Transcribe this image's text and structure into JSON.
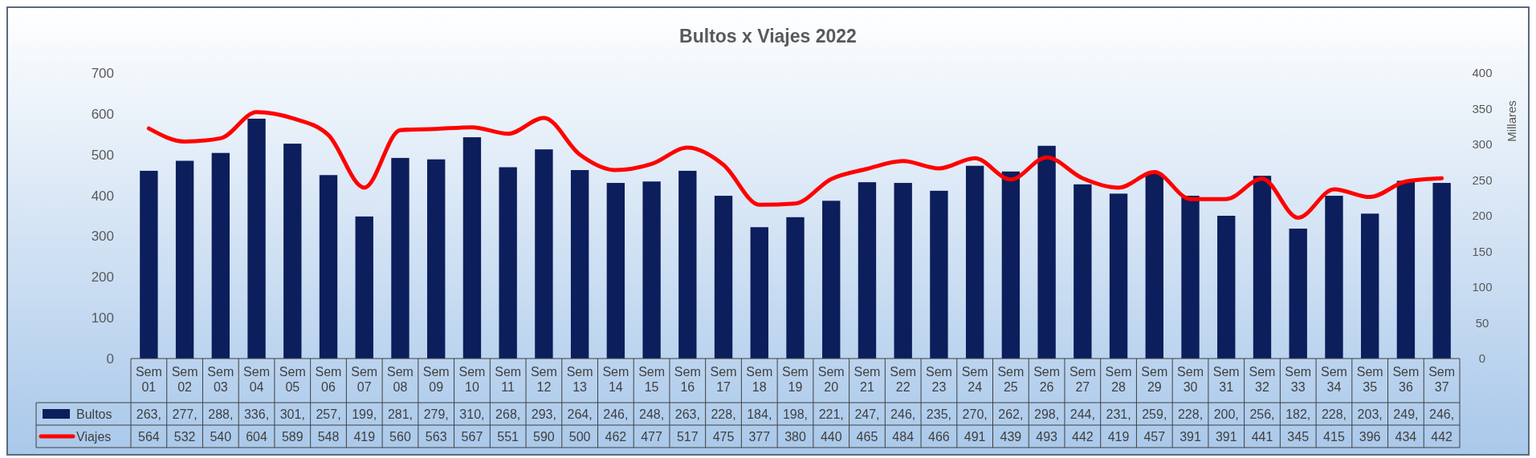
{
  "chart_data": {
    "type": "bar",
    "title": "Bultos x Viajes 2022",
    "y2label": "Millares",
    "categories": [
      "Sem 01",
      "Sem 02",
      "Sem 03",
      "Sem 04",
      "Sem 05",
      "Sem 06",
      "Sem 07",
      "Sem 08",
      "Sem 09",
      "Sem 10",
      "Sem 11",
      "Sem 12",
      "Sem 13",
      "Sem 14",
      "Sem 15",
      "Sem 16",
      "Sem 17",
      "Sem 18",
      "Sem 19",
      "Sem 20",
      "Sem 21",
      "Sem 22",
      "Sem 23",
      "Sem 24",
      "Sem 25",
      "Sem 26",
      "Sem 27",
      "Sem 28",
      "Sem 29",
      "Sem 30",
      "Sem 31",
      "Sem 32",
      "Sem 33",
      "Sem 34",
      "Sem 35",
      "Sem 36",
      "Sem 37"
    ],
    "series": [
      {
        "name": "Bultos",
        "axis": "y2",
        "color": "#0c1e5b",
        "values": [
          263,
          277,
          288,
          336,
          301,
          257,
          199,
          281,
          279,
          310,
          268,
          293,
          264,
          246,
          248,
          263,
          228,
          184,
          198,
          221,
          247,
          246,
          235,
          270,
          262,
          298,
          244,
          231,
          259,
          228,
          200,
          256,
          182,
          228,
          203,
          249,
          246
        ],
        "value_labels": [
          "263,",
          "277,",
          "288,",
          "336,",
          "301,",
          "257,",
          "199,",
          "281,",
          "279,",
          "310,",
          "268,",
          "293,",
          "264,",
          "246,",
          "248,",
          "263,",
          "228,",
          "184,",
          "198,",
          "221,",
          "247,",
          "246,",
          "235,",
          "270,",
          "262,",
          "298,",
          "244,",
          "231,",
          "259,",
          "228,",
          "200,",
          "256,",
          "182,",
          "228,",
          "203,",
          "249,",
          "246,"
        ]
      },
      {
        "name": "Viajes",
        "type": "line",
        "color": "#ff0000",
        "values": [
          564,
          532,
          540,
          604,
          589,
          548,
          419,
          560,
          563,
          567,
          551,
          590,
          500,
          462,
          477,
          517,
          475,
          377,
          380,
          440,
          465,
          484,
          466,
          491,
          439,
          493,
          442,
          419,
          457,
          391,
          391,
          441,
          345,
          415,
          396,
          434,
          442
        ]
      }
    ],
    "ylim": [
      0,
      700
    ],
    "yticks": [
      0,
      100,
      200,
      300,
      400,
      500,
      600,
      700
    ],
    "y2lim": [
      0,
      400
    ],
    "y2ticks": [
      0,
      50,
      100,
      150,
      200,
      250,
      300,
      350,
      400
    ],
    "grid": false,
    "legend": "bottom left",
    "data_labels": true,
    "marker": "none"
  }
}
